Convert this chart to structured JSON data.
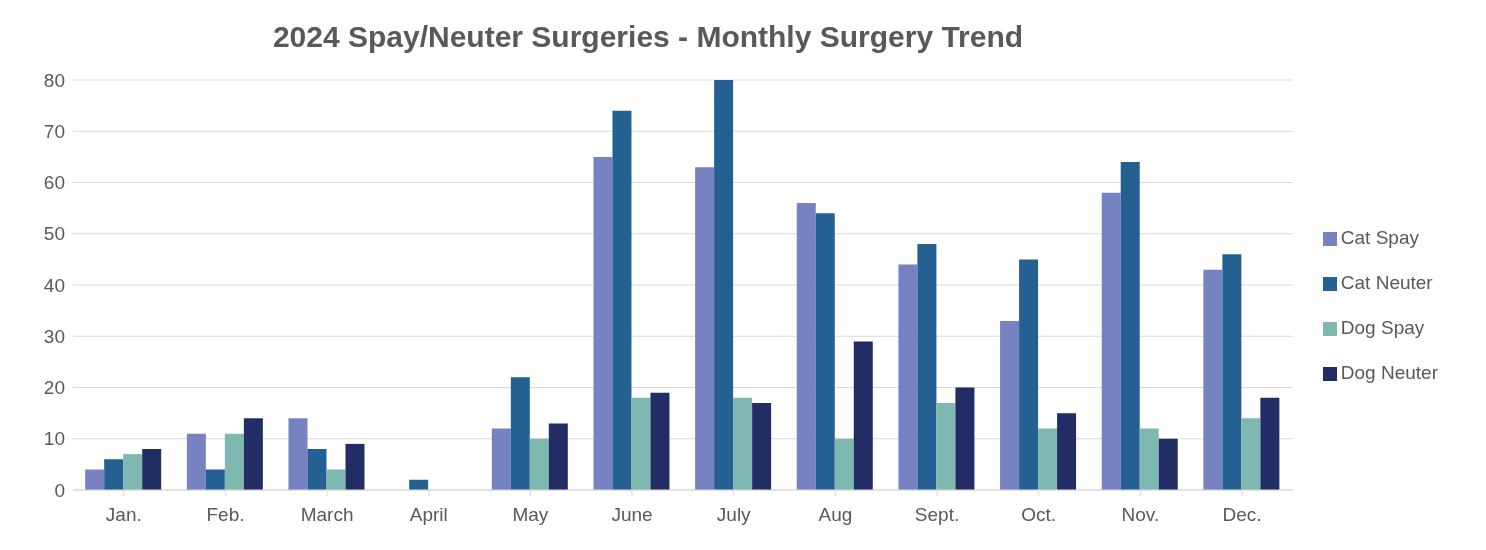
{
  "chart_data": {
    "type": "bar",
    "title": "2024 Spay/Neuter Surgeries - Monthly Surgery Trend",
    "categories": [
      "Jan.",
      "Feb.",
      "March",
      "April",
      "May",
      "June",
      "July",
      "Aug",
      "Sept.",
      "Oct.",
      "Nov.",
      "Dec."
    ],
    "series": [
      {
        "name": "Cat Spay",
        "color": "#7682c2",
        "values": [
          4,
          11,
          14,
          0,
          12,
          65,
          63,
          56,
          44,
          33,
          58,
          43
        ]
      },
      {
        "name": "Cat Neuter",
        "color": "#246092",
        "values": [
          6,
          4,
          8,
          2,
          22,
          74,
          80,
          54,
          48,
          45,
          64,
          46
        ]
      },
      {
        "name": "Dog Spay",
        "color": "#7fb8b0",
        "values": [
          7,
          11,
          4,
          0,
          10,
          18,
          18,
          10,
          17,
          12,
          12,
          14
        ]
      },
      {
        "name": "Dog Neuter",
        "color": "#232d65",
        "values": [
          8,
          14,
          9,
          0,
          13,
          19,
          17,
          29,
          20,
          15,
          10,
          18
        ]
      }
    ],
    "ylim": [
      0,
      80
    ],
    "yticks": [
      0,
      10,
      20,
      30,
      40,
      50,
      60,
      70,
      80
    ],
    "grid": "y",
    "legend": "right"
  }
}
